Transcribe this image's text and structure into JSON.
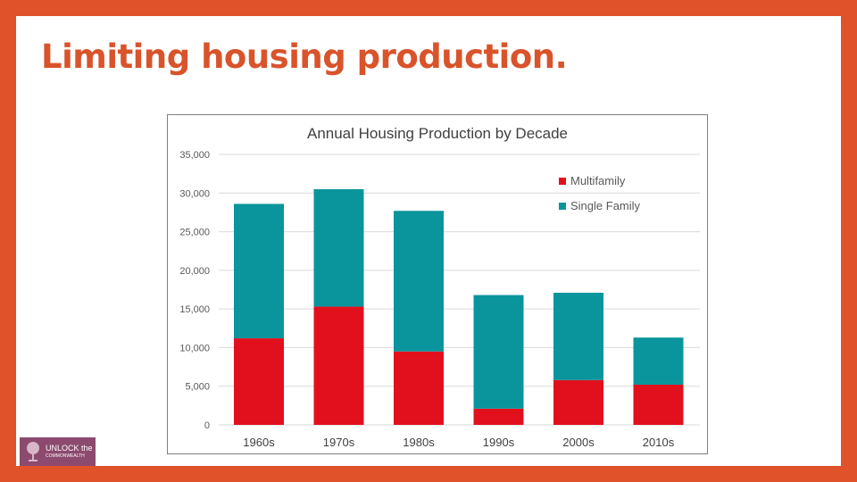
{
  "slide": {
    "title": "Limiting housing production."
  },
  "chart_data": {
    "type": "bar",
    "stacked": true,
    "title": "Annual Housing Production by Decade",
    "xlabel": "",
    "ylabel": "",
    "categories": [
      "1960s",
      "1970s",
      "1980s",
      "1990s",
      "2000s",
      "2010s"
    ],
    "series": [
      {
        "name": "Multifamily",
        "color": "#e2101d",
        "values": [
          11200,
          15300,
          9500,
          2100,
          5800,
          5200
        ]
      },
      {
        "name": "Single Family",
        "color": "#0a959c",
        "values": [
          17400,
          15200,
          18200,
          14700,
          11300,
          6100
        ]
      }
    ],
    "ylim": [
      0,
      35000
    ],
    "yticks": [
      0,
      5000,
      10000,
      15000,
      20000,
      25000,
      30000,
      35000
    ],
    "ytick_labels": [
      "0",
      "5,000",
      "10,000",
      "15,000",
      "20,000",
      "25,000",
      "30,000",
      "35,000"
    ],
    "grid": true,
    "legend_position": "top-right"
  },
  "logo": {
    "line1": "UNLOCK the",
    "line2": "COMMONWEALTH",
    "color": "#8c4a6f"
  }
}
